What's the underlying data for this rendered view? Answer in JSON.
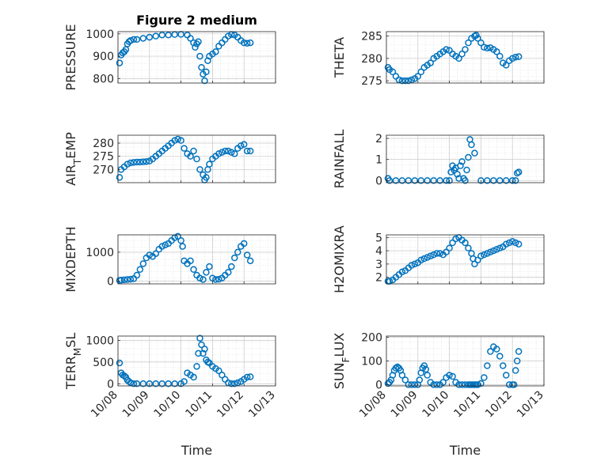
{
  "figure_title": "Figure 2 medium",
  "colors": {
    "series": "#0072BD",
    "grid": "#d9d9d9",
    "axis": "#262626"
  },
  "chart_data": [
    {
      "type": "scatter",
      "name": "pressure",
      "title": "Figure 2 medium",
      "ylabel": "PRESSURE",
      "ylabel_sub": "",
      "xlabel": "",
      "xlim": [
        0,
        5
      ],
      "ylim": [
        780,
        1010
      ],
      "yticks": [
        800,
        900,
        1000
      ],
      "xticks": [
        0,
        1,
        2,
        3,
        4,
        5
      ],
      "xticklabels": [],
      "x": [
        0.05,
        0.1,
        0.15,
        0.2,
        0.25,
        0.3,
        0.35,
        0.4,
        0.5,
        0.6,
        0.8,
        1.0,
        1.2,
        1.4,
        1.6,
        1.8,
        2.0,
        2.2,
        2.3,
        2.4,
        2.45,
        2.5,
        2.55,
        2.6,
        2.65,
        2.7,
        2.75,
        2.8,
        2.85,
        2.9,
        3.0,
        3.1,
        3.2,
        3.3,
        3.4,
        3.5,
        3.6,
        3.7,
        3.8,
        3.9,
        4.0,
        4.1,
        4.2
      ],
      "values": [
        870,
        905,
        915,
        920,
        930,
        955,
        965,
        970,
        975,
        975,
        980,
        985,
        990,
        995,
        995,
        997,
        998,
        995,
        980,
        960,
        940,
        955,
        965,
        900,
        850,
        820,
        790,
        830,
        880,
        900,
        910,
        920,
        945,
        960,
        975,
        990,
        997,
        995,
        985,
        970,
        960,
        958,
        960
      ]
    },
    {
      "type": "scatter",
      "name": "theta",
      "title": "",
      "ylabel": "THETA",
      "ylabel_sub": "",
      "xlabel": "",
      "xlim": [
        0,
        5
      ],
      "ylim": [
        274.5,
        286
      ],
      "yticks": [
        275,
        280,
        285
      ],
      "xticks": [
        0,
        1,
        2,
        3,
        4,
        5
      ],
      "xticklabels": [],
      "x": [
        0.05,
        0.1,
        0.2,
        0.3,
        0.4,
        0.5,
        0.6,
        0.7,
        0.8,
        0.9,
        1.0,
        1.1,
        1.2,
        1.3,
        1.4,
        1.5,
        1.6,
        1.7,
        1.8,
        1.9,
        2.0,
        2.1,
        2.2,
        2.3,
        2.4,
        2.5,
        2.6,
        2.7,
        2.8,
        2.85,
        2.9,
        3.0,
        3.1,
        3.2,
        3.3,
        3.4,
        3.5,
        3.6,
        3.7,
        3.8,
        3.9,
        4.0,
        4.1,
        4.2
      ],
      "values": [
        278,
        277.5,
        277,
        276,
        275.2,
        275,
        275,
        275,
        275.2,
        275.5,
        276,
        277,
        278,
        278.5,
        279,
        280,
        280.5,
        281,
        281.5,
        282,
        281.8,
        281,
        280.5,
        280,
        281,
        282,
        283.5,
        284.5,
        285,
        285.2,
        284.5,
        283.5,
        282.5,
        282.3,
        282.4,
        282,
        281.5,
        280.5,
        279,
        278.5,
        279.5,
        280,
        280.3,
        280.4
      ]
    },
    {
      "type": "scatter",
      "name": "air-temp",
      "title": "",
      "ylabel": "AIR",
      "ylabel_sub": "T",
      "ylabel_rest": "EMP",
      "xlabel": "",
      "xlim": [
        0,
        5
      ],
      "ylim": [
        265,
        283
      ],
      "yticks": [
        270,
        275,
        280
      ],
      "xticks": [
        0,
        1,
        2,
        3,
        4,
        5
      ],
      "xticklabels": [],
      "x": [
        0.05,
        0.1,
        0.2,
        0.3,
        0.4,
        0.5,
        0.6,
        0.7,
        0.8,
        0.9,
        1.0,
        1.1,
        1.2,
        1.3,
        1.4,
        1.5,
        1.6,
        1.7,
        1.8,
        1.9,
        2.0,
        2.1,
        2.2,
        2.3,
        2.4,
        2.5,
        2.6,
        2.7,
        2.75,
        2.8,
        2.85,
        2.9,
        3.0,
        3.1,
        3.2,
        3.3,
        3.4,
        3.5,
        3.6,
        3.7,
        3.8,
        3.9,
        4.0,
        4.1,
        4.2
      ],
      "values": [
        267,
        270,
        271,
        272,
        272.5,
        272.7,
        272.8,
        272.8,
        272.9,
        273,
        273.2,
        274,
        275,
        276,
        277,
        278,
        279,
        280,
        281,
        281.5,
        281,
        278,
        276,
        275,
        277,
        274,
        270,
        268,
        266,
        267,
        270,
        272,
        274,
        275,
        276,
        276.5,
        277,
        277,
        276.5,
        276,
        278,
        279,
        279.5,
        277,
        277
      ]
    },
    {
      "type": "scatter",
      "name": "rainfall",
      "title": "",
      "ylabel": "RAINFALL",
      "ylabel_sub": "",
      "xlabel": "",
      "xlim": [
        0,
        5
      ],
      "ylim": [
        -0.1,
        2.15
      ],
      "yticks": [
        0,
        1,
        2
      ],
      "xticks": [
        0,
        1,
        2,
        3,
        4,
        5
      ],
      "xticklabels": [],
      "x": [
        0.05,
        0.1,
        0.3,
        0.5,
        0.7,
        0.9,
        1.1,
        1.3,
        1.5,
        1.7,
        1.9,
        2.0,
        2.05,
        2.1,
        2.15,
        2.2,
        2.25,
        2.3,
        2.35,
        2.4,
        2.45,
        2.5,
        2.55,
        2.6,
        2.65,
        2.7,
        2.8,
        3.0,
        3.2,
        3.4,
        3.6,
        3.8,
        4.0,
        4.1,
        4.15,
        4.2
      ],
      "values": [
        0.1,
        0,
        0,
        0,
        0,
        0,
        0,
        0,
        0,
        0,
        0,
        0,
        0.4,
        0.7,
        0.5,
        0.6,
        0.3,
        0.1,
        0.7,
        0.9,
        0.1,
        0,
        0.5,
        1.1,
        1.95,
        1.7,
        1.3,
        0,
        0,
        0,
        0,
        0,
        0,
        0,
        0.35,
        0.4
      ]
    },
    {
      "type": "scatter",
      "name": "mixdepth",
      "title": "",
      "ylabel": "MIXDEPTH",
      "ylabel_sub": "",
      "xlabel": "",
      "xlim": [
        0,
        5
      ],
      "ylim": [
        -100,
        1600
      ],
      "yticks": [
        0,
        1000
      ],
      "xticks": [
        0,
        1,
        2,
        3,
        4,
        5
      ],
      "xticklabels": [],
      "x": [
        0.05,
        0.1,
        0.2,
        0.3,
        0.4,
        0.5,
        0.6,
        0.7,
        0.8,
        0.9,
        1.0,
        1.1,
        1.2,
        1.3,
        1.4,
        1.5,
        1.6,
        1.7,
        1.8,
        1.9,
        2.0,
        2.05,
        2.1,
        2.2,
        2.3,
        2.4,
        2.5,
        2.6,
        2.7,
        2.8,
        2.9,
        3.0,
        3.1,
        3.2,
        3.3,
        3.4,
        3.5,
        3.6,
        3.7,
        3.8,
        3.9,
        4.0,
        4.1,
        4.2
      ],
      "values": [
        20,
        30,
        40,
        50,
        60,
        80,
        200,
        400,
        600,
        800,
        900,
        850,
        950,
        1100,
        1200,
        1250,
        1300,
        1400,
        1500,
        1550,
        1400,
        1200,
        700,
        600,
        700,
        400,
        200,
        100,
        50,
        300,
        500,
        100,
        50,
        60,
        100,
        200,
        300,
        500,
        800,
        1000,
        1200,
        1300,
        900,
        700
      ]
    },
    {
      "type": "scatter",
      "name": "h2o-mixing-ratio",
      "title": "",
      "ylabel": "H2OMIXRA",
      "ylabel_sub": "",
      "xlabel": "",
      "xlim": [
        0,
        5
      ],
      "ylim": [
        1.5,
        5.2
      ],
      "yticks": [
        2,
        3,
        4,
        5
      ],
      "xticks": [
        0,
        1,
        2,
        3,
        4,
        5
      ],
      "xticklabels": [],
      "x": [
        0.05,
        0.1,
        0.2,
        0.3,
        0.4,
        0.5,
        0.6,
        0.7,
        0.8,
        0.9,
        1.0,
        1.1,
        1.2,
        1.3,
        1.4,
        1.5,
        1.6,
        1.7,
        1.8,
        1.9,
        2.0,
        2.1,
        2.2,
        2.3,
        2.4,
        2.5,
        2.6,
        2.7,
        2.75,
        2.8,
        2.9,
        3.0,
        3.1,
        3.2,
        3.3,
        3.4,
        3.5,
        3.6,
        3.7,
        3.8,
        3.9,
        4.0,
        4.1,
        4.2
      ],
      "values": [
        1.7,
        1.7,
        1.8,
        2.0,
        2.2,
        2.4,
        2.5,
        2.7,
        2.9,
        3.0,
        3.1,
        3.3,
        3.4,
        3.5,
        3.6,
        3.7,
        3.8,
        3.8,
        3.7,
        3.9,
        4.2,
        4.6,
        4.9,
        5.0,
        4.8,
        4.6,
        4.2,
        3.8,
        3.4,
        3.0,
        3.3,
        3.6,
        3.7,
        3.8,
        3.9,
        4.0,
        4.1,
        4.2,
        4.3,
        4.5,
        4.6,
        4.7,
        4.6,
        4.5
      ]
    },
    {
      "type": "scatter",
      "name": "terrestrial-flux",
      "title": "",
      "ylabel": "TERR",
      "ylabel_sub": "M",
      "ylabel_rest": "SL",
      "xlabel": "Time",
      "xlim": [
        0,
        5
      ],
      "ylim": [
        -50,
        1100
      ],
      "yticks": [
        0,
        500,
        1000
      ],
      "xticks": [
        0,
        1,
        2,
        3,
        4,
        5
      ],
      "xticklabels": [
        "10/08",
        "10/09",
        "10/10",
        "10/11",
        "10/12",
        "10/13"
      ],
      "x": [
        0.05,
        0.1,
        0.15,
        0.2,
        0.25,
        0.3,
        0.35,
        0.4,
        0.5,
        0.6,
        0.8,
        1.0,
        1.2,
        1.4,
        1.6,
        1.8,
        2.0,
        2.1,
        2.2,
        2.3,
        2.4,
        2.5,
        2.55,
        2.6,
        2.65,
        2.7,
        2.75,
        2.8,
        2.85,
        2.9,
        3.0,
        3.1,
        3.2,
        3.3,
        3.4,
        3.5,
        3.6,
        3.7,
        3.8,
        3.9,
        4.0,
        4.1,
        4.2
      ],
      "values": [
        480,
        250,
        200,
        180,
        150,
        80,
        50,
        20,
        0,
        0,
        0,
        0,
        0,
        0,
        0,
        0,
        0,
        50,
        250,
        200,
        150,
        400,
        700,
        1050,
        900,
        700,
        800,
        550,
        500,
        480,
        400,
        350,
        300,
        200,
        100,
        20,
        0,
        0,
        20,
        50,
        100,
        150,
        160
      ]
    },
    {
      "type": "scatter",
      "name": "sun-flux",
      "title": "",
      "ylabel": "SUN",
      "ylabel_sub": "F",
      "ylabel_rest": "LUX",
      "xlabel": "Time",
      "xlim": [
        0,
        5
      ],
      "ylim": [
        -5,
        205
      ],
      "yticks": [
        0,
        100,
        200
      ],
      "xticks": [
        0,
        1,
        2,
        3,
        4,
        5
      ],
      "xticklabels": [
        "10/08",
        "10/09",
        "10/10",
        "10/11",
        "10/12",
        "10/13"
      ],
      "x": [
        0.05,
        0.1,
        0.15,
        0.2,
        0.25,
        0.3,
        0.35,
        0.4,
        0.45,
        0.5,
        0.6,
        0.7,
        0.8,
        0.9,
        1.0,
        1.05,
        1.1,
        1.15,
        1.2,
        1.25,
        1.3,
        1.4,
        1.5,
        1.6,
        1.7,
        1.8,
        1.9,
        2.0,
        2.1,
        2.2,
        2.3,
        2.4,
        2.5,
        2.6,
        2.65,
        2.7,
        2.75,
        2.8,
        2.85,
        2.9,
        3.0,
        3.1,
        3.2,
        3.3,
        3.4,
        3.5,
        3.6,
        3.7,
        3.8,
        3.9,
        4.0,
        4.05,
        4.1,
        4.15,
        4.2
      ],
      "values": [
        5,
        10,
        20,
        40,
        60,
        70,
        75,
        70,
        60,
        40,
        20,
        0,
        0,
        0,
        0,
        20,
        50,
        70,
        80,
        65,
        40,
        10,
        0,
        0,
        0,
        10,
        30,
        40,
        35,
        10,
        0,
        0,
        0,
        0,
        0,
        0,
        0,
        0,
        0,
        0,
        5,
        30,
        80,
        140,
        160,
        150,
        120,
        80,
        40,
        0,
        0,
        0,
        60,
        100,
        140
      ]
    }
  ]
}
